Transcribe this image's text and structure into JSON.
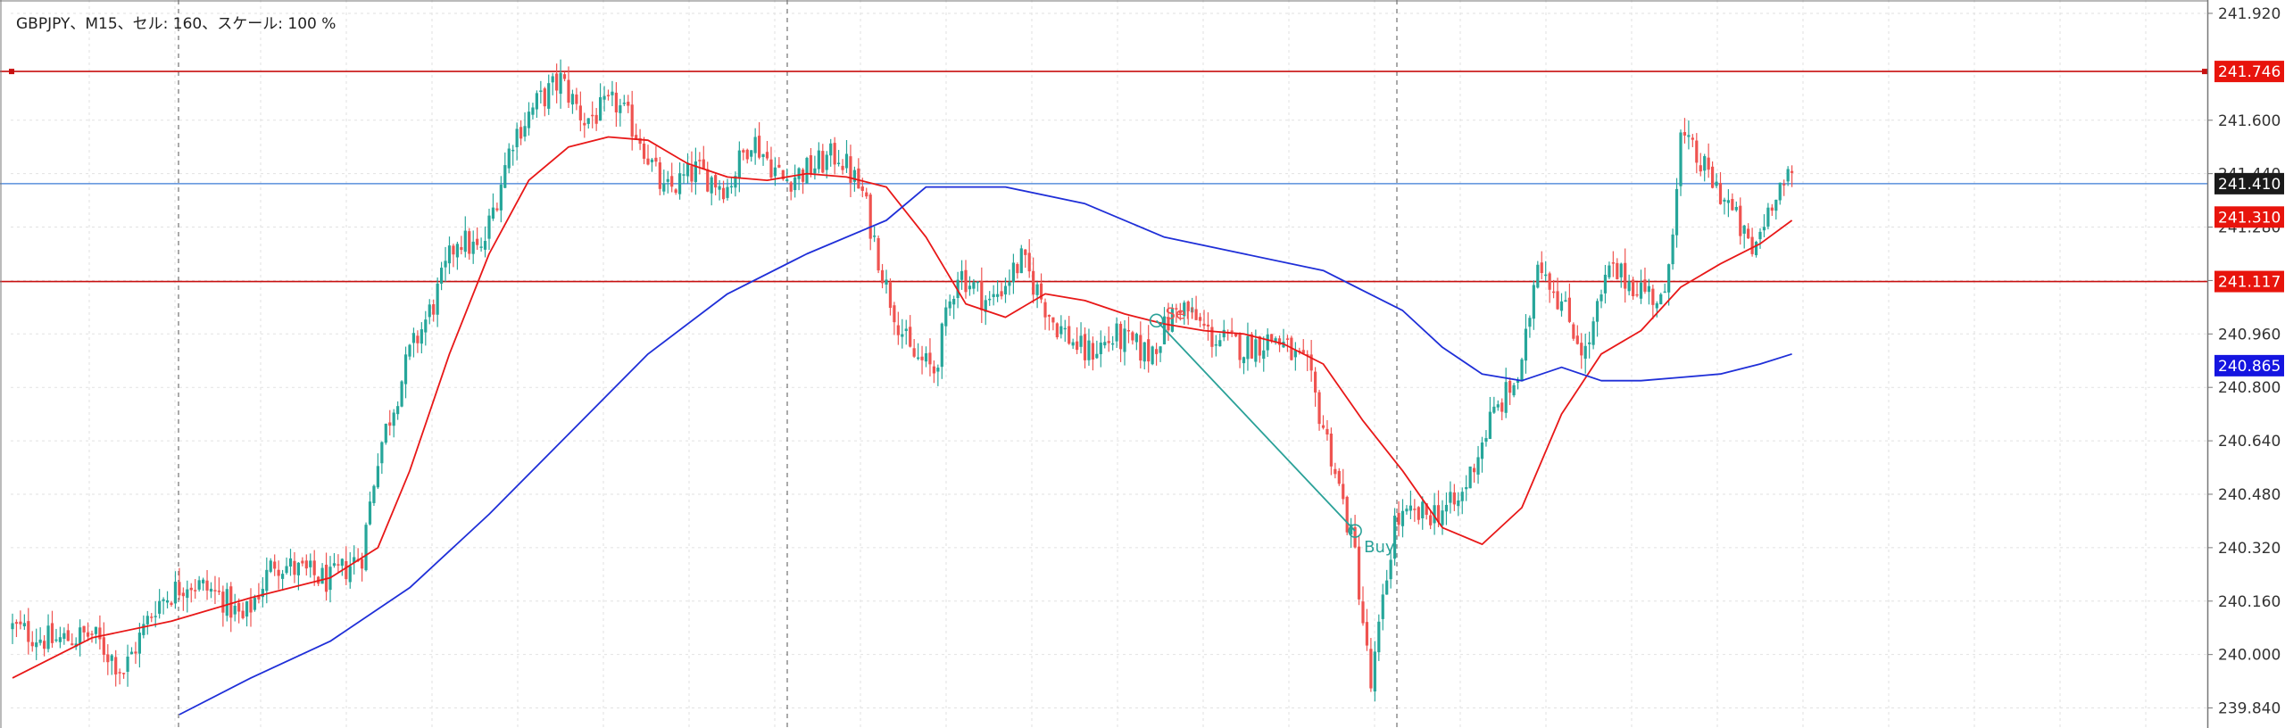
{
  "header": {
    "title": "GBPJPY、M15、セル: 160、スケール: 100 %"
  },
  "colors": {
    "bull": "#26a69a",
    "bear": "#ef5350",
    "ma_fast": "#e81818",
    "ma_slow": "#1f2fd8",
    "hline_red": "#c81010",
    "hline_blue": "#3a7bd5",
    "trade_line": "#2aa198",
    "grid": "#e2e2e2"
  },
  "chart_data": {
    "type": "candlestick",
    "symbol": "GBPJPY",
    "timeframe": "M15",
    "ylim": [
      239.78,
      241.96
    ],
    "yticks": [
      "241.920",
      "241.600",
      "241.440",
      "241.280",
      "241.120",
      "240.960",
      "240.800",
      "240.640",
      "240.480",
      "240.320",
      "240.160",
      "240.000",
      "239.840"
    ],
    "price_tags": [
      {
        "label": "241.746",
        "value": 241.746,
        "bg": "#e8140c"
      },
      {
        "label": "241.410",
        "value": 241.41,
        "bg": "#1a1a1a"
      },
      {
        "label": "241.310",
        "value": 241.31,
        "bg": "#e8140c"
      },
      {
        "label": "241.117",
        "value": 241.117,
        "bg": "#e8140c"
      },
      {
        "label": "240.865",
        "value": 240.865,
        "bg": "#1515e0"
      }
    ],
    "horizontal_lines": [
      {
        "value": 241.746,
        "kind": "red"
      },
      {
        "value": 241.117,
        "kind": "red"
      },
      {
        "value": 241.41,
        "kind": "blue"
      }
    ],
    "close_path": [
      [
        0,
        240.08
      ],
      [
        10,
        240.04
      ],
      [
        20,
        240.06
      ],
      [
        28,
        239.95
      ],
      [
        36,
        240.15
      ],
      [
        44,
        240.22
      ],
      [
        52,
        240.18
      ],
      [
        58,
        240.1
      ],
      [
        66,
        240.28
      ],
      [
        72,
        240.25
      ],
      [
        80,
        240.22
      ],
      [
        88,
        240.3
      ],
      [
        92,
        240.6
      ],
      [
        100,
        240.9
      ],
      [
        106,
        241.05
      ],
      [
        112,
        241.25
      ],
      [
        118,
        241.2
      ],
      [
        126,
        241.55
      ],
      [
        132,
        241.65
      ],
      [
        138,
        241.72
      ],
      [
        144,
        241.6
      ],
      [
        152,
        241.65
      ],
      [
        158,
        241.55
      ],
      [
        164,
        241.38
      ],
      [
        172,
        241.45
      ],
      [
        180,
        241.4
      ],
      [
        186,
        241.55
      ],
      [
        194,
        241.42
      ],
      [
        200,
        241.45
      ],
      [
        208,
        241.5
      ],
      [
        214,
        241.38
      ],
      [
        220,
        241.1
      ],
      [
        226,
        240.9
      ],
      [
        232,
        240.85
      ],
      [
        238,
        241.15
      ],
      [
        246,
        241.05
      ],
      [
        254,
        241.18
      ],
      [
        262,
        241.0
      ],
      [
        270,
        240.9
      ],
      [
        278,
        240.95
      ],
      [
        286,
        240.9
      ],
      [
        294,
        241.05
      ],
      [
        302,
        240.95
      ],
      [
        310,
        240.92
      ],
      [
        318,
        240.95
      ],
      [
        326,
        240.85
      ],
      [
        332,
        240.6
      ],
      [
        338,
        240.3
      ],
      [
        342,
        239.9
      ],
      [
        348,
        240.4
      ],
      [
        356,
        240.42
      ],
      [
        364,
        240.45
      ],
      [
        372,
        240.7
      ],
      [
        380,
        240.85
      ],
      [
        384,
        241.2
      ],
      [
        390,
        241.05
      ],
      [
        396,
        240.9
      ],
      [
        402,
        241.15
      ],
      [
        410,
        241.1
      ],
      [
        416,
        241.05
      ],
      [
        420,
        241.55
      ],
      [
        426,
        241.45
      ],
      [
        432,
        241.35
      ],
      [
        438,
        241.2
      ],
      [
        444,
        241.4
      ],
      [
        448,
        241.42
      ]
    ],
    "ma_fast": {
      "name": "",
      "points": [
        [
          0,
          239.93
        ],
        [
          20,
          240.05
        ],
        [
          40,
          240.1
        ],
        [
          60,
          240.17
        ],
        [
          80,
          240.23
        ],
        [
          92,
          240.32
        ],
        [
          100,
          240.55
        ],
        [
          110,
          240.9
        ],
        [
          120,
          241.2
        ],
        [
          130,
          241.42
        ],
        [
          140,
          241.52
        ],
        [
          150,
          241.55
        ],
        [
          160,
          241.54
        ],
        [
          170,
          241.47
        ],
        [
          180,
          241.43
        ],
        [
          190,
          241.42
        ],
        [
          200,
          241.44
        ],
        [
          210,
          241.43
        ],
        [
          220,
          241.4
        ],
        [
          230,
          241.25
        ],
        [
          240,
          241.05
        ],
        [
          250,
          241.01
        ],
        [
          260,
          241.08
        ],
        [
          270,
          241.06
        ],
        [
          280,
          241.02
        ],
        [
          290,
          240.99
        ],
        [
          300,
          240.97
        ],
        [
          310,
          240.96
        ],
        [
          320,
          240.93
        ],
        [
          330,
          240.87
        ],
        [
          340,
          240.7
        ],
        [
          350,
          240.55
        ],
        [
          360,
          240.38
        ],
        [
          370,
          240.33
        ],
        [
          380,
          240.44
        ],
        [
          390,
          240.72
        ],
        [
          400,
          240.9
        ],
        [
          410,
          240.97
        ],
        [
          420,
          241.1
        ],
        [
          430,
          241.17
        ],
        [
          440,
          241.23
        ],
        [
          448,
          241.3
        ]
      ]
    },
    "ma_slow": {
      "name": "",
      "points": [
        [
          42,
          239.82
        ],
        [
          60,
          239.93
        ],
        [
          80,
          240.04
        ],
        [
          100,
          240.2
        ],
        [
          120,
          240.42
        ],
        [
          140,
          240.66
        ],
        [
          160,
          240.9
        ],
        [
          180,
          241.08
        ],
        [
          200,
          241.2
        ],
        [
          220,
          241.3
        ],
        [
          230,
          241.4
        ],
        [
          250,
          241.4
        ],
        [
          270,
          241.35
        ],
        [
          290,
          241.25
        ],
        [
          310,
          241.2
        ],
        [
          330,
          241.15
        ],
        [
          340,
          241.09
        ],
        [
          350,
          241.03
        ],
        [
          360,
          240.92
        ],
        [
          370,
          240.84
        ],
        [
          380,
          240.82
        ],
        [
          390,
          240.86
        ],
        [
          400,
          240.82
        ],
        [
          410,
          240.82
        ],
        [
          420,
          240.83
        ],
        [
          430,
          240.84
        ],
        [
          440,
          240.87
        ],
        [
          448,
          240.9
        ]
      ]
    },
    "trades": [
      {
        "type": "sell",
        "label": "Sell",
        "bar": 288,
        "price": 241.0
      },
      {
        "type": "buy",
        "label": "Buy",
        "bar": 338,
        "price": 240.37
      }
    ]
  }
}
